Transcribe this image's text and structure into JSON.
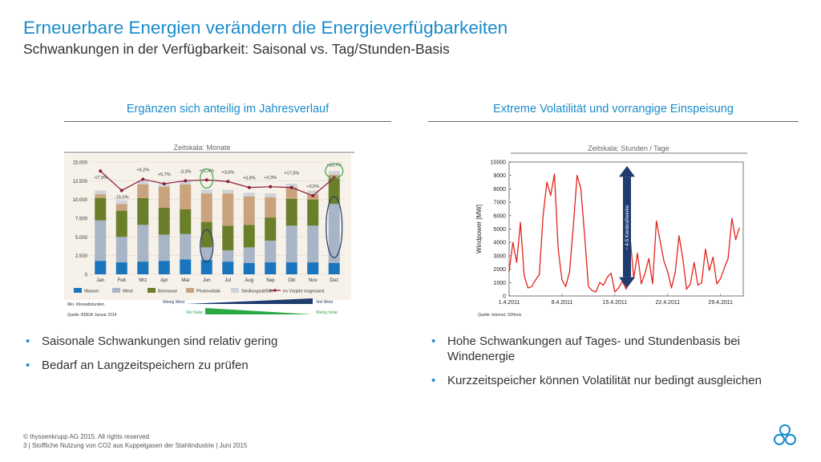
{
  "title": "Erneuerbare Energien verändern die Energieverfügbarkeiten",
  "subtitle": "Schwankungen in der Verfügbarkeit: Saisonal vs. Tag/Stunden-Basis",
  "left": {
    "heading": "Ergänzen sich anteilig im Jahresverlauf",
    "bullets": [
      "Saisonale Schwankungen sind relativ gering",
      "Bedarf an Langzeitspeichern zu prüfen"
    ]
  },
  "right": {
    "heading": "Extreme Volatilität und vorrangige Einspeisung",
    "bullets": [
      "Hohe Schwankungen auf Tages- und Stundenbasis bei Windenergie",
      "Kurzzeitspeicher können Volatilität nur bedingt ausgleichen"
    ]
  },
  "footer": {
    "copyright": "© thyssenkrupp AG 2015. All rights reserved",
    "line2": "3   |  Stoffliche Nutzung von CO2 aus Kuppelgasen der Stahlindustrie  |  Juni 2015"
  },
  "chart_data": [
    {
      "type": "bar",
      "title": "Zeitskala: Monate",
      "categories": [
        "Jan",
        "Feb",
        "Mrz",
        "Apr",
        "Mai",
        "Jun",
        "Jul",
        "Aug",
        "Sep",
        "Okt",
        "Nov",
        "Dez"
      ],
      "ylim": [
        0,
        15000
      ],
      "yticks": [
        "0",
        "2.500",
        "5.000",
        "7.500",
        "10.000",
        "12.500",
        "15.000"
      ],
      "series": [
        {
          "name": "Wasser",
          "color": "#1a75bc",
          "values": [
            1800,
            1600,
            1700,
            1800,
            2000,
            1900,
            1700,
            1500,
            1600,
            1600,
            1600,
            1500
          ]
        },
        {
          "name": "Wind",
          "color": "#a7b5c6",
          "values": [
            5400,
            3400,
            4900,
            3500,
            3400,
            1700,
            1500,
            2100,
            2900,
            4900,
            4900,
            7900
          ]
        },
        {
          "name": "Biomasse",
          "color": "#6b7e2a",
          "values": [
            3000,
            3500,
            3600,
            3600,
            3300,
            3400,
            3300,
            3000,
            3100,
            3600,
            3500,
            3400
          ]
        },
        {
          "name": "Photovoltaik",
          "color": "#c9a27e",
          "values": [
            500,
            900,
            1800,
            2800,
            3300,
            3800,
            4300,
            3800,
            2700,
            1500,
            700,
            500
          ]
        },
        {
          "name": "Siedlungsabfälle",
          "color": "#cfd3d8",
          "values": [
            500,
            500,
            500,
            500,
            500,
            500,
            500,
            500,
            500,
            500,
            500,
            500
          ]
        }
      ],
      "line": {
        "name": "im Vorjahr insgesamt",
        "color": "#8c1c3c",
        "values": [
          13800,
          11200,
          12700,
          12100,
          12500,
          12600,
          12400,
          11600,
          11700,
          11600,
          10500,
          12900
        ]
      },
      "annotations": [
        "-17,9%",
        "-15,0%",
        "+5,2%",
        "+5,7%",
        "-3,3%",
        "+11,4%",
        "+3,0%",
        "+3,8%",
        "+2,3%",
        "+17,5%",
        "+3,5%",
        "+10,7%"
      ],
      "unit_note": "Mio. Kilowattstunden",
      "source": "Quelle: BDEW Januar 2014",
      "wind_left": "Wenig Wind",
      "wind_right": "Viel Wind",
      "solar_left": "Viel Solar",
      "solar_right": "Wenig Solar"
    },
    {
      "type": "line",
      "title": "Zeitskala: Stunden / Tage",
      "ylabel": "Windpower [MW]",
      "ylim": [
        0,
        10000
      ],
      "yticks": [
        0,
        1000,
        2000,
        3000,
        4000,
        5000,
        6000,
        7000,
        8000,
        9000,
        10000
      ],
      "xticks": [
        "1.4.2011",
        "8.4.2011",
        "15.4.2011",
        "22.4.2011",
        "29.4.2011"
      ],
      "xlim": [
        0,
        31
      ],
      "series": [
        {
          "name": "",
          "color": "#e2231a",
          "x": [
            0,
            0.5,
            1,
            1.5,
            2,
            2.5,
            3,
            3.5,
            4,
            4.5,
            5,
            5.5,
            6,
            6.5,
            7,
            7.5,
            8,
            8.5,
            9,
            9.5,
            10,
            10.5,
            11,
            11.5,
            12,
            12.5,
            13,
            13.5,
            14,
            14.5,
            15,
            15.5,
            16,
            16.5,
            17,
            17.5,
            18,
            18.5,
            19,
            19.5,
            20,
            20.5,
            21,
            21.5,
            22,
            22.5,
            23,
            23.5,
            24,
            24.5,
            25,
            25.5,
            26,
            26.5,
            27,
            27.5,
            28,
            28.5,
            29,
            29.5,
            30,
            30.5
          ],
          "y": [
            1800,
            4000,
            2500,
            5500,
            1500,
            600,
            700,
            1200,
            1600,
            6000,
            8500,
            7500,
            9100,
            3500,
            1200,
            700,
            1800,
            5200,
            9000,
            8000,
            4500,
            700,
            400,
            300,
            1000,
            800,
            1400,
            1700,
            300,
            600,
            1100,
            500,
            4600,
            1300,
            3200,
            900,
            1700,
            2800,
            900,
            5600,
            4100,
            2600,
            1800,
            600,
            1800,
            4500,
            2800,
            500,
            900,
            2500,
            800,
            1000,
            3500,
            1900,
            2900,
            900,
            1300,
            2100,
            2800,
            5800,
            4200,
            5100
          ]
        }
      ],
      "annotation": "~ 4-5 Kernkraftwerke",
      "source": "Quelle: Internet, 50Hertz"
    }
  ]
}
